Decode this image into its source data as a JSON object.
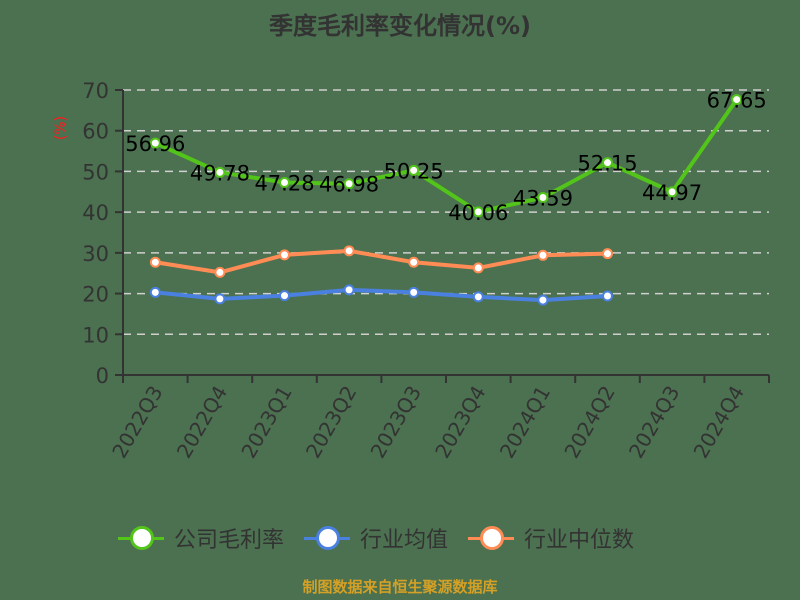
{
  "title": "季度毛利率变化情况(%)",
  "footer": "制图数据来自恒生聚源数据库",
  "colors": {
    "background": "#4b7150",
    "company": "#52c41a",
    "industry_avg": "#4a80e0",
    "industry_median": "#ff8c55",
    "ylabel": "#ff1a1a",
    "footer": "#d4a025",
    "axis": "#333333",
    "grid": "#d0d0d0"
  },
  "legend": [
    {
      "label": "公司毛利率",
      "color": "#52c41a"
    },
    {
      "label": "行业均值",
      "color": "#4a80e0"
    },
    {
      "label": "行业中位数",
      "color": "#ff8c55"
    }
  ],
  "chart_data": {
    "type": "line",
    "title": "季度毛利率变化情况(%)",
    "xlabel": "",
    "ylabel": "(%)",
    "ylim": [
      0,
      70
    ],
    "yticks": [
      0,
      10,
      20,
      30,
      40,
      50,
      60,
      70
    ],
    "grid": "horizontal dashed",
    "legend_position": "bottom",
    "categories": [
      "2022Q3",
      "2022Q4",
      "2023Q1",
      "2023Q2",
      "2023Q3",
      "2023Q4",
      "2024Q1",
      "2024Q2",
      "2024Q3",
      "2024Q4"
    ],
    "series": [
      {
        "name": "公司毛利率",
        "values": [
          56.96,
          49.78,
          47.28,
          46.98,
          50.25,
          40.06,
          43.59,
          52.15,
          44.97,
          67.65
        ],
        "labels": [
          "56.96",
          "49.78",
          "47.28",
          "46.98",
          "50.25",
          "40.06",
          "43.59",
          "52.15",
          "44.97",
          "67.65"
        ]
      },
      {
        "name": "行业均值",
        "values": [
          20.3,
          18.7,
          19.5,
          20.9,
          20.3,
          19.2,
          18.4,
          19.4,
          null,
          null
        ]
      },
      {
        "name": "行业中位数",
        "values": [
          27.7,
          25.2,
          29.5,
          30.5,
          27.7,
          26.3,
          29.4,
          29.8,
          null,
          null
        ]
      }
    ]
  }
}
